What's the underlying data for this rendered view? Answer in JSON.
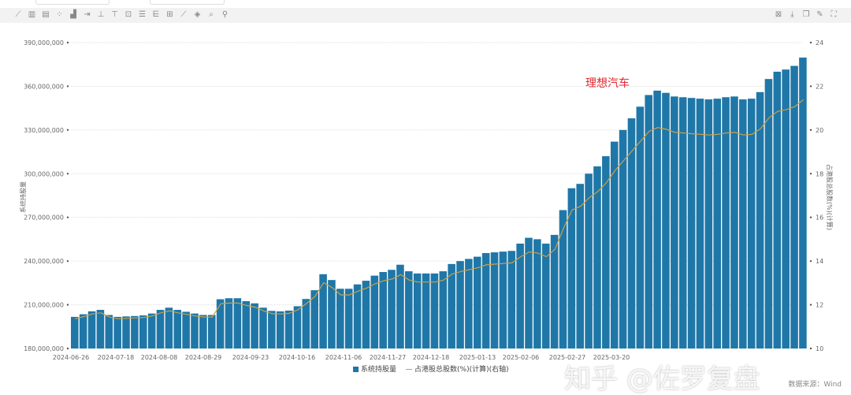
{
  "toolbar": {
    "left_icons": [
      "line-chart-icon",
      "bar-chart-icon",
      "stacked-bar-icon",
      "scatter-icon",
      "area-chart-icon",
      "axis-icon",
      "align-icon",
      "split-icon",
      "insert-icon",
      "list-icon",
      "grid-lines-icon",
      "table-icon",
      "draw-line-icon",
      "fill-color-icon",
      "zoom-icon",
      "settings-icon"
    ],
    "right_icons": [
      "export-excel-icon",
      "download-icon",
      "copy-icon",
      "edit-icon",
      "fullscreen-icon"
    ]
  },
  "chart_data": {
    "type": "bar",
    "title": "",
    "annotation": "理想汽车",
    "ylabel": "系统持股量",
    "ylabel_right": "占港股总股数(%)(计算)",
    "ylim": [
      180000000,
      390000000
    ],
    "ylim_right": [
      10,
      24
    ],
    "yticks": [
      "180,000,000",
      "210,000,000",
      "240,000,000",
      "270,000,000",
      "300,000,000",
      "330,000,000",
      "360,000,000",
      "390,000,000"
    ],
    "yticks_right": [
      "10",
      "12",
      "14",
      "16",
      "18",
      "20",
      "22",
      "24"
    ],
    "xticks": [
      "2024-06-26",
      "2024-07-18",
      "2024-08-08",
      "2024-08-29",
      "2024-09-23",
      "2024-10-16",
      "2024-11-06",
      "2024-11-27",
      "2024-12-18",
      "2025-01-13",
      "2025-02-06",
      "2025-02-27",
      "2025-03-20"
    ],
    "grid": true,
    "legend_position": "bottom",
    "series": [
      {
        "name": "系统持股量",
        "type": "bar",
        "color": "#1f77a8",
        "unit": "millions of shares",
        "values": [
          201.7,
          203.5,
          205.5,
          206.5,
          203,
          201.7,
          202,
          202.3,
          202.7,
          204,
          206.5,
          208,
          206.5,
          205.2,
          204,
          203,
          203,
          213.8,
          214.5,
          214.5,
          212.5,
          211,
          208,
          205.8,
          205.5,
          206,
          209,
          214,
          220,
          231,
          227,
          221,
          221,
          224,
          226.5,
          230,
          232.5,
          234,
          237.5,
          233,
          231.5,
          231.5,
          231.5,
          233,
          238,
          240,
          241.5,
          243,
          245.5,
          246,
          246.5,
          247,
          252,
          256,
          255,
          252,
          258,
          275,
          290,
          293,
          300,
          305,
          312,
          322,
          330,
          338,
          346,
          354,
          357,
          355.5,
          353,
          352.5,
          352,
          351.5,
          351,
          351.5,
          352.5,
          353,
          351,
          351.5,
          356,
          365,
          370,
          371.5,
          374,
          379.7
        ]
      },
      {
        "name": "占港股总股数(%)(计算)(右轴)",
        "type": "line",
        "color": "#c9a24a",
        "values": [
          11.36,
          11.46,
          11.58,
          11.63,
          11.44,
          11.36,
          11.38,
          11.4,
          11.42,
          11.49,
          11.63,
          11.72,
          11.63,
          11.56,
          11.49,
          11.44,
          11.44,
          12.05,
          12.08,
          12.08,
          11.97,
          11.89,
          11.72,
          11.59,
          11.58,
          11.61,
          11.77,
          12.06,
          12.39,
          13.01,
          12.79,
          12.45,
          12.45,
          12.62,
          12.76,
          12.96,
          13.1,
          13.18,
          13.38,
          13.13,
          13.04,
          13.04,
          13.04,
          13.13,
          13.41,
          13.52,
          13.61,
          13.69,
          13.83,
          13.86,
          13.89,
          13.92,
          14.2,
          14.42,
          14.37,
          14.2,
          14.54,
          15.49,
          16.34,
          16.51,
          16.9,
          17.18,
          17.58,
          18.14,
          18.59,
          19.04,
          19.49,
          19.94,
          20.11,
          20.03,
          19.89,
          19.86,
          19.83,
          19.8,
          19.77,
          19.8,
          19.86,
          19.89,
          19.77,
          19.8,
          20.06,
          20.56,
          20.85,
          20.93,
          21.07,
          21.39
        ]
      }
    ]
  },
  "legend": {
    "bar": "系统持股量",
    "line": "占港股总股数(%)(计算)(右轴)"
  },
  "source": "数据来源：Wind",
  "watermark": "知乎 @佐罗复盘"
}
